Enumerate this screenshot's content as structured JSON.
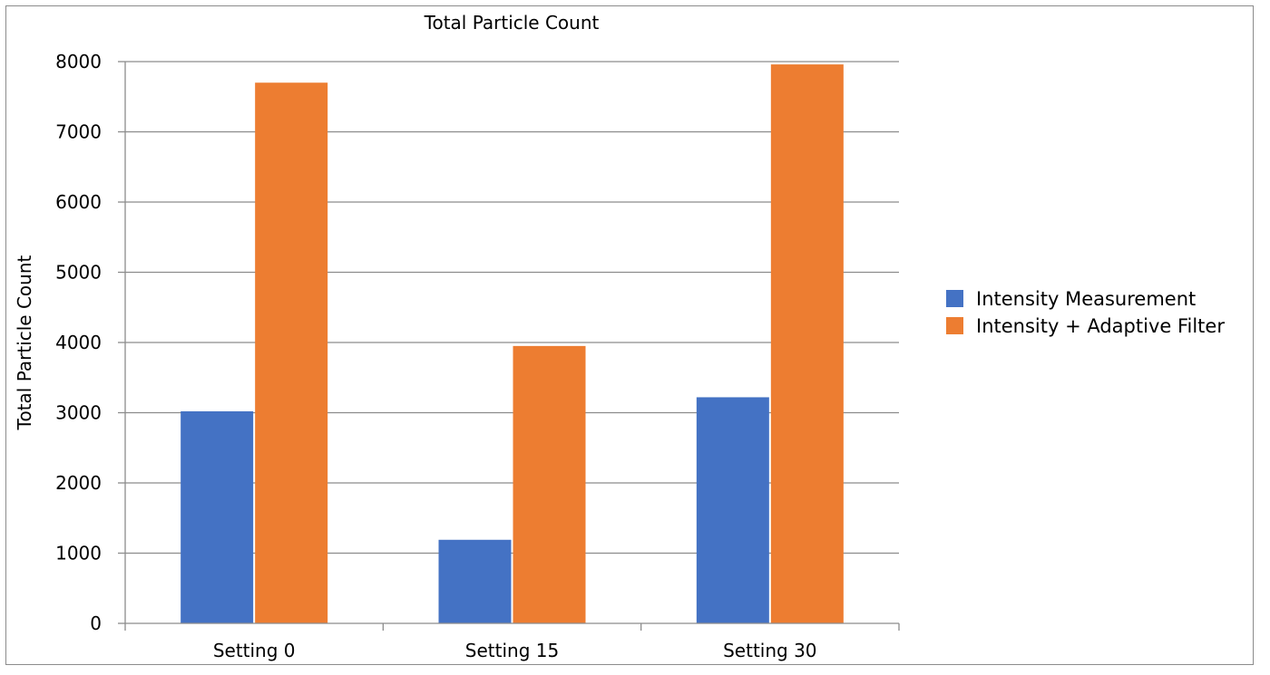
{
  "chart_data": {
    "type": "bar",
    "title": "Total Particle Count",
    "xlabel": "",
    "ylabel": "Total Particle Count",
    "categories": [
      "Setting 0",
      "Setting 15",
      "Setting 30"
    ],
    "series": [
      {
        "name": "Intensity Measurement",
        "color": "#4472c4",
        "values": [
          3020,
          1190,
          3220
        ]
      },
      {
        "name": "Intensity + Adaptive Filter",
        "color": "#ed7d31",
        "values": [
          7700,
          3950,
          7960
        ]
      }
    ],
    "ylim": [
      0,
      8000
    ],
    "yticks": [
      0,
      1000,
      2000,
      3000,
      4000,
      5000,
      6000,
      7000,
      8000
    ],
    "grid": true,
    "gridline_color": "#8c8c8c",
    "legend_position": "right"
  }
}
